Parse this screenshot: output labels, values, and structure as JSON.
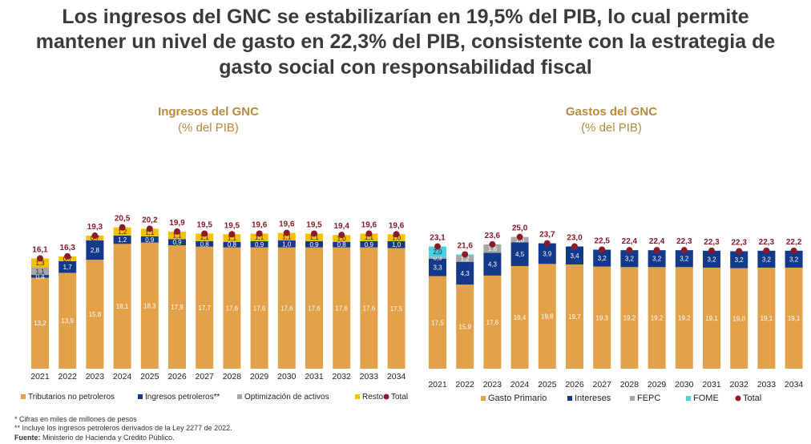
{
  "title_lines": [
    "Los ingresos del GNC se estabilizarían en 19,5% del PIB, lo cual permite",
    "mantener un nivel de gasto en 22,3% del PIB, consistente con la estrategia de",
    "gasto social con responsabilidad fiscal"
  ],
  "footnotes": {
    "note1": "* Cifras en miles de millones de pesos",
    "note2": "** Incluye los ingresos petroleros derivados de la Ley 2277 de 2022.",
    "source_label": "Fuente:",
    "source_text": " Ministerio de Hacienda y Crédito Público."
  },
  "colors": {
    "orange": "#e3a24a",
    "navy": "#133a8a",
    "gray": "#a6a6a6",
    "yellow": "#f7c000",
    "cyan": "#4dd0e1",
    "total_dot": "#8b1a2a",
    "title_gold": "#b88a3a"
  },
  "chart_data": [
    {
      "type": "bar",
      "stacked": true,
      "title": "Ingresos del GNC",
      "subtitle": "(% del PIB)",
      "categories": [
        "2021",
        "2022",
        "2023",
        "2024",
        "2025",
        "2026",
        "2027",
        "2028",
        "2029",
        "2030",
        "2031",
        "2032",
        "2033",
        "2034"
      ],
      "series": [
        {
          "name": "Tributarios no petroleros",
          "color": "#e3a24a",
          "label_color": "#ffffff",
          "values": [
            13.2,
            13.9,
            15.8,
            18.1,
            18.3,
            17.9,
            17.7,
            17.6,
            17.6,
            17.6,
            17.6,
            17.6,
            17.6,
            17.5
          ]
        },
        {
          "name": "Ingresos petroleros**",
          "color": "#133a8a",
          "label_color": "#ffffff",
          "values": [
            0.4,
            1.7,
            2.8,
            1.2,
            0.9,
            0.9,
            0.8,
            0.8,
            0.9,
            1.0,
            0.9,
            0.8,
            0.9,
            1.0
          ]
        },
        {
          "name": "Optimización de activos",
          "color": "#a6a6a6",
          "label_color": "#222222",
          "values": [
            1.1,
            0,
            0,
            0,
            0,
            0,
            0,
            0,
            0,
            0,
            0,
            0,
            0,
            0
          ]
        },
        {
          "name": "Resto",
          "color": "#f7c000",
          "label_color": "#222222",
          "values": [
            1.3,
            0.7,
            0.7,
            1.2,
            1.1,
            1.1,
            1.1,
            1.1,
            1.1,
            1.1,
            1.1,
            1.0,
            1.1,
            1.0
          ]
        }
      ],
      "total": {
        "name": "Total",
        "values": [
          16.1,
          16.3,
          19.3,
          20.5,
          20.2,
          19.9,
          19.5,
          19.5,
          19.6,
          19.6,
          19.5,
          19.4,
          19.6,
          19.6
        ]
      },
      "legend_position": "bottom",
      "grid": false
    },
    {
      "type": "bar",
      "stacked": true,
      "title": "Gastos del GNC",
      "subtitle": "(% del PIB)",
      "categories": [
        "2021",
        "2022",
        "2023",
        "2024",
        "2025",
        "2026",
        "2027",
        "2028",
        "2029",
        "2030",
        "2031",
        "2032",
        "2033",
        "2034"
      ],
      "series": [
        {
          "name": "Gasto Primario",
          "color": "#e3a24a",
          "label_color": "#ffffff",
          "values": [
            17.5,
            15.9,
            17.6,
            19.4,
            19.8,
            19.7,
            19.3,
            19.2,
            19.2,
            19.2,
            19.1,
            19.0,
            19.1,
            19.1
          ]
        },
        {
          "name": "Intereses",
          "color": "#133a8a",
          "label_color": "#ffffff",
          "values": [
            3.3,
            4.3,
            4.3,
            4.5,
            3.9,
            3.4,
            3.2,
            3.2,
            3.2,
            3.2,
            3.2,
            3.2,
            3.2,
            3.2
          ]
        },
        {
          "name": "FEPC",
          "color": "#a6a6a6",
          "label_color": "#ffffff",
          "values": [
            0.3,
            1.2,
            1.6,
            1.0,
            0,
            0,
            0,
            0,
            0,
            0,
            0,
            0,
            0,
            0
          ]
        },
        {
          "name": "FOME",
          "color": "#4dd0e1",
          "label_color": "#222222",
          "values": [
            2.0,
            0.2,
            0,
            0,
            0,
            0,
            0,
            0,
            0,
            0,
            0,
            0,
            0,
            0
          ]
        }
      ],
      "total": {
        "name": "Total",
        "values": [
          23.1,
          21.6,
          23.6,
          25.0,
          23.7,
          23.0,
          22.5,
          22.4,
          22.4,
          22.3,
          22.3,
          22.3,
          22.3,
          22.2
        ]
      },
      "legend_position": "bottom",
      "grid": false
    }
  ]
}
